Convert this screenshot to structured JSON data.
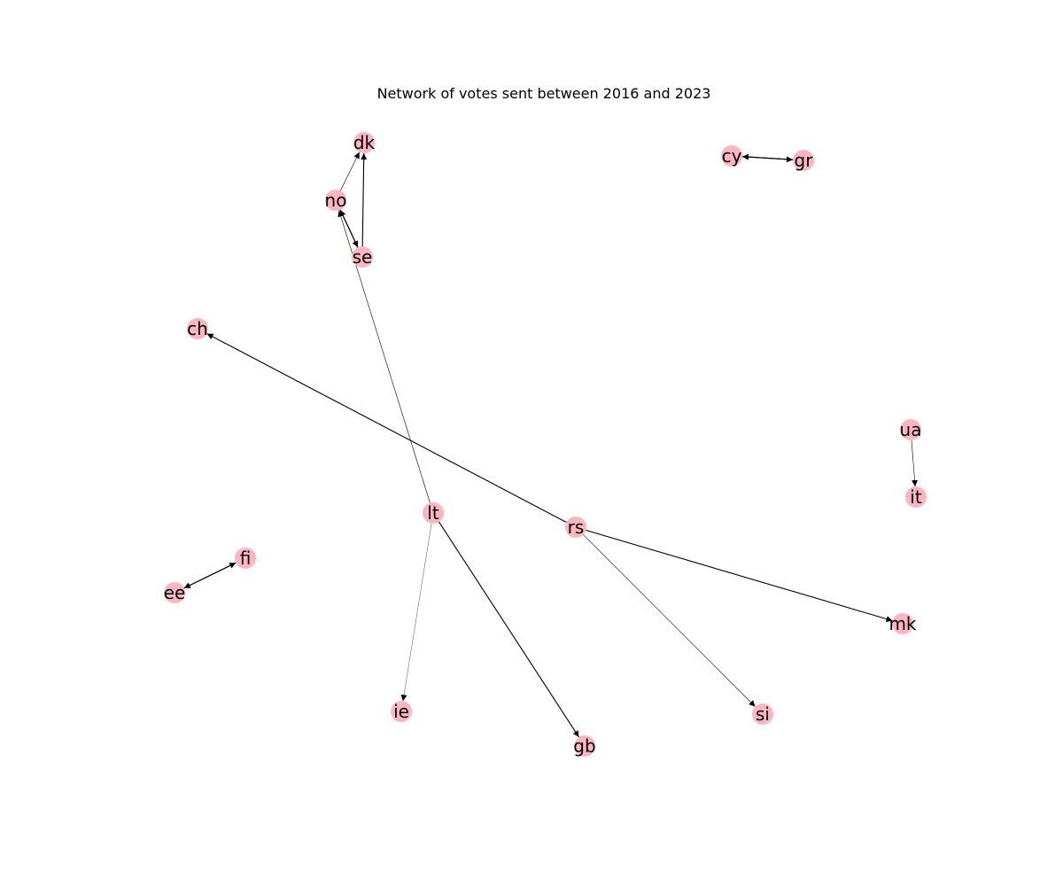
{
  "title": "Network of votes sent between 2016 and 2023",
  "node_color": "#ffb6c1",
  "edge_color": "#000000",
  "nodes": [
    "dk",
    "no",
    "se",
    "cy",
    "gr",
    "ch",
    "ua",
    "it",
    "lt",
    "rs",
    "fi",
    "ee",
    "mk",
    "ie",
    "si",
    "gb"
  ],
  "edges": [
    {
      "from": "no",
      "to": "dk",
      "weight": "thin"
    },
    {
      "from": "se",
      "to": "dk",
      "weight": "medium"
    },
    {
      "from": "no",
      "to": "se",
      "weight": "medium"
    },
    {
      "from": "se",
      "to": "no",
      "weight": "medium"
    },
    {
      "from": "lt",
      "to": "no",
      "weight": "thin"
    },
    {
      "from": "cy",
      "to": "gr",
      "weight": "medium"
    },
    {
      "from": "gr",
      "to": "cy",
      "weight": "medium"
    },
    {
      "from": "rs",
      "to": "ch",
      "weight": "medium"
    },
    {
      "from": "ua",
      "to": "it",
      "weight": "thin"
    },
    {
      "from": "rs",
      "to": "mk",
      "weight": "medium"
    },
    {
      "from": "rs",
      "to": "si",
      "weight": "thin"
    },
    {
      "from": "lt",
      "to": "gb",
      "weight": "medium"
    },
    {
      "from": "lt",
      "to": "ie",
      "weight": "hair"
    },
    {
      "from": "ee",
      "to": "fi",
      "weight": "medium"
    },
    {
      "from": "fi",
      "to": "ee",
      "weight": "medium"
    }
  ]
}
